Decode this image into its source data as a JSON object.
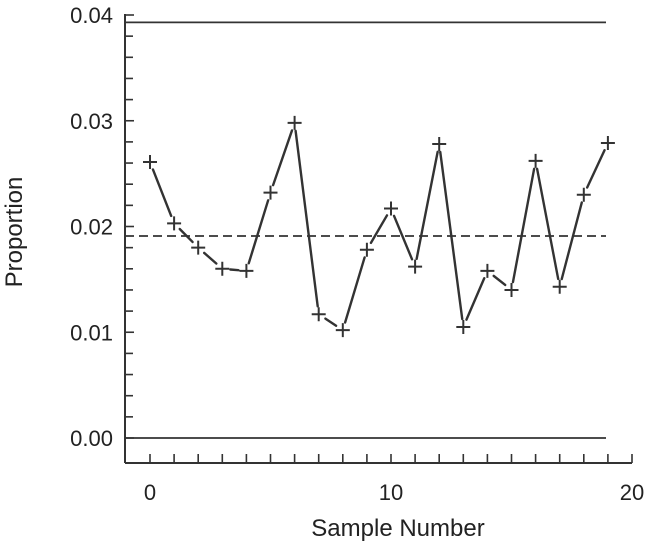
{
  "chart_data": {
    "type": "line",
    "title": "",
    "xlabel": "Sample Number",
    "ylabel": "Proportion",
    "xlim": [
      -1,
      20
    ],
    "ylim": [
      0,
      0.04
    ],
    "x_ticks": [
      0,
      10,
      20
    ],
    "x_tick_labels": [
      "0",
      "10",
      "20"
    ],
    "y_ticks": [
      0,
      0.01,
      0.02,
      0.03,
      0.04
    ],
    "y_tick_labels": [
      "0.00",
      "0.01",
      "0.02",
      "0.03",
      "0.04"
    ],
    "grid": false,
    "series": [
      {
        "x": [
          0,
          1,
          2,
          3,
          4,
          5,
          6,
          7,
          8,
          9,
          10,
          11,
          12,
          13,
          14,
          15,
          16,
          17,
          18,
          19
        ],
        "values": [
          0.0261,
          0.0203,
          0.018,
          0.016,
          0.0158,
          0.0232,
          0.0298,
          0.0117,
          0.0102,
          0.0178,
          0.0217,
          0.0162,
          0.0278,
          0.0105,
          0.0158,
          0.014,
          0.0262,
          0.0143,
          0.023,
          0.0279
        ],
        "marker": "plus",
        "color": "#333333"
      }
    ],
    "reference_lines": [
      {
        "value": 0.0393,
        "style": "solid"
      },
      {
        "value": 0.0191,
        "style": "dashed"
      },
      {
        "value": 0.0,
        "style": "solid"
      }
    ]
  }
}
